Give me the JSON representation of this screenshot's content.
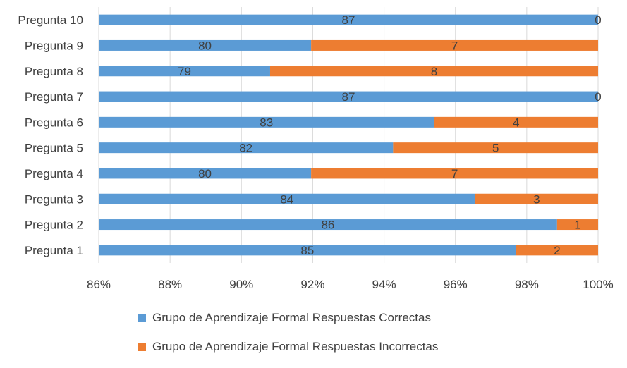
{
  "chart_data": {
    "type": "bar",
    "orientation": "horizontal",
    "stacked": "percent",
    "categories": [
      "Pregunta 10",
      "Pregunta 9",
      "Pregunta 8",
      "Pregunta 7",
      "Pregunta 6",
      "Pregunta 5",
      "Pregunta 4",
      "Pregunta 3",
      "Pregunta 2",
      "Pregunta 1"
    ],
    "series": [
      {
        "name": "Grupo de Aprendizaje Formal Respuestas Correctas",
        "color": "#5B9BD5",
        "values": [
          87,
          80,
          79,
          87,
          83,
          82,
          80,
          84,
          86,
          85
        ]
      },
      {
        "name": "Grupo de Aprendizaje Formal Respuestas Incorrectas",
        "color": "#ED7D31",
        "values": [
          0,
          7,
          8,
          0,
          4,
          5,
          7,
          3,
          1,
          2
        ]
      }
    ],
    "xlim": [
      0.86,
      1.0
    ],
    "xticks": [
      "86%",
      "88%",
      "90%",
      "92%",
      "94%",
      "96%",
      "98%",
      "100%"
    ],
    "grid": true,
    "legend_position": "bottom"
  }
}
